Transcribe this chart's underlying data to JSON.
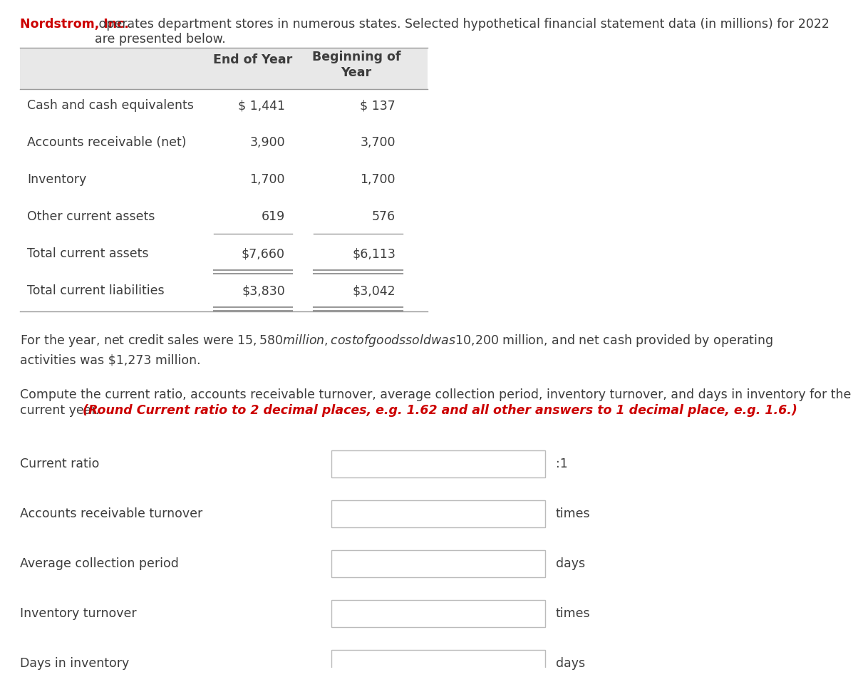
{
  "title_red": "Nordstrom, Inc.",
  "title_rest": " operates department stores in numerous states. Selected hypothetical financial statement data (in millions) for 2022\nare presented below.",
  "col_headers": [
    "End of Year",
    "Beginning of\nYear"
  ],
  "row_labels": [
    "Cash and cash equivalents",
    "Accounts receivable (net)",
    "Inventory",
    "Other current assets",
    "Total current assets",
    "Total current liabilities"
  ],
  "end_of_year": [
    "$ 1,441",
    "3,900",
    "1,700",
    "619",
    "$7,660",
    "$3,830"
  ],
  "beginning_of_year": [
    "$ 137",
    "3,700",
    "1,700",
    "576",
    "$6,113",
    "$3,042"
  ],
  "paragraph1": "For the year, net credit sales were $15,580 million, cost of goods sold was $10,200 million, and net cash provided by operating\nactivities was $1,273 million.",
  "paragraph2_normal_line1": "Compute the current ratio, accounts receivable turnover, average collection period, inventory turnover, and days in inventory for the",
  "paragraph2_normal_line2": "current year. ",
  "paragraph2_bold_italic": "(Round Current ratio to 2 decimal places, e.g. 1.62 and all other answers to 1 decimal place, e.g. 1.6.)",
  "input_labels": [
    "Current ratio",
    "Accounts receivable turnover",
    "Average collection period",
    "Inventory turnover",
    "Days in inventory"
  ],
  "input_units": [
    ":1",
    "times",
    "days",
    "times",
    "days"
  ],
  "bg_color": "#ffffff",
  "header_bg": "#e8e8e8",
  "text_color": "#3d3d3d",
  "red_color": "#cc0000",
  "table_border_color": "#999999",
  "input_box_border": "#bbbbbb",
  "font_size": 12.5
}
